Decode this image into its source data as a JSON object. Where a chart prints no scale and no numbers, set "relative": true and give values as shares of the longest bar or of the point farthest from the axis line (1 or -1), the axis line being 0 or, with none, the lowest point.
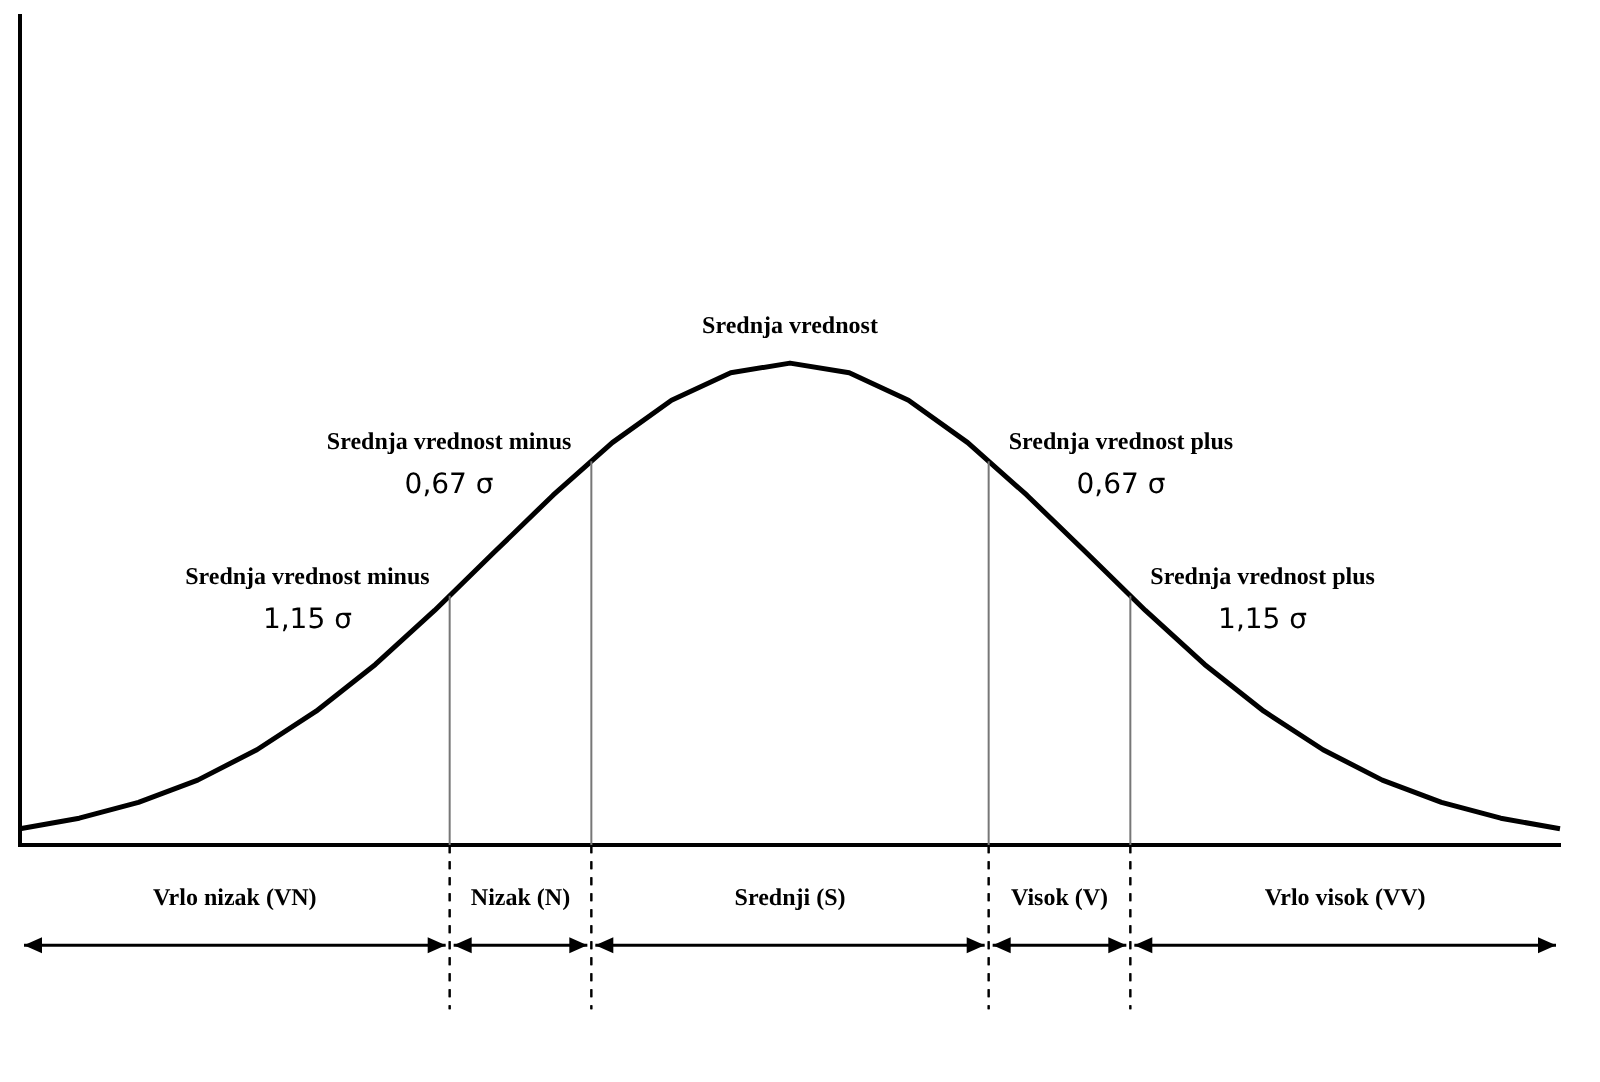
{
  "chart_data": {
    "type": "line",
    "relative": true,
    "legend": false,
    "marker": "none",
    "line_style": "solid",
    "categories": [
      null,
      null,
      null,
      null,
      null,
      null,
      null,
      null,
      null,
      null,
      null,
      null,
      null,
      null,
      null,
      null,
      null,
      null,
      null,
      null,
      null,
      null,
      null,
      null,
      null,
      null,
      null
    ],
    "series": [
      {
        "color": "#000000",
        "values": [
          0.034,
          0.056,
          0.089,
          0.135,
          0.198,
          0.278,
          0.375,
          0.487,
          0.607,
          0.726,
          0.835,
          0.923,
          0.98,
          1,
          0.98,
          0.923,
          0.835,
          0.726,
          0.607,
          0.487,
          0.375,
          0.278,
          0.198,
          0.135,
          0.089,
          0.056,
          0.034
        ]
      }
    ],
    "annotations": [
      "Srednja vrednost",
      "Srednja vrednost minus 1,15 σ",
      "Srednja vrednost minus 0,67 σ",
      "Srednja vrednost plus 0,67 σ",
      "Srednja vrednost plus 1,15 σ",
      "Vrlo nizak (VN)",
      "Nizak (N)",
      "Srednji (S)",
      "Visok (V)",
      "Vrlo visok (VV)"
    ]
  }
}
